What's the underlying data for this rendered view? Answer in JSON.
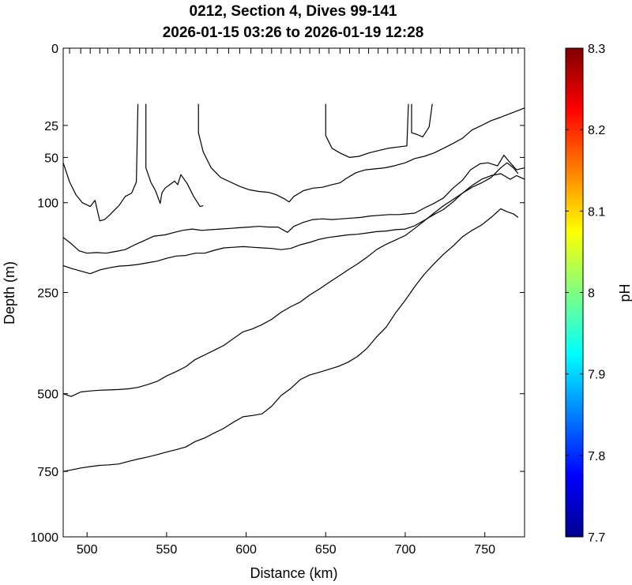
{
  "chart_data": {
    "type": "contour",
    "title_line1": "0212, Section 4, Dives 99-141",
    "title_line2": "2026-01-15 03:26 to 2026-01-19 12:28",
    "xlabel": "Distance (km)",
    "ylabel": "Depth (m)",
    "xlim": [
      485,
      775
    ],
    "ylim": [
      0,
      1000
    ],
    "y_scale": "sqrt",
    "x_ticks": [
      500,
      550,
      600,
      650,
      700,
      750
    ],
    "y_ticks": [
      0,
      25,
      50,
      100,
      250,
      500,
      750,
      1000
    ],
    "dive_marker_x": [
      485,
      489,
      496,
      502,
      508,
      513,
      520,
      527,
      533,
      537,
      541,
      548,
      556,
      562,
      568,
      575,
      582,
      589,
      596,
      603,
      610,
      616,
      622,
      628,
      634,
      640,
      646,
      652,
      659,
      665,
      671,
      677,
      683,
      689,
      695,
      700,
      705,
      710,
      716,
      722,
      728,
      734,
      740,
      746,
      752,
      757,
      762,
      767,
      771
    ],
    "colorbar": {
      "label": "pH",
      "min": 7.7,
      "max": 8.3,
      "ticks": [
        "8.3",
        "8.2",
        "8.1",
        "8",
        "7.9",
        "7.8",
        "7.7"
      ],
      "colormap": [
        "#00008f",
        "#0000ff",
        "#0080ff",
        "#00ffff",
        "#80ff80",
        "#ffff00",
        "#ff8000",
        "#ff0000",
        "#800000"
      ]
    },
    "contours": [
      [
        [
          485,
          55
        ],
        [
          489,
          75
        ],
        [
          493,
          90
        ],
        [
          497,
          100
        ],
        [
          502,
          105
        ],
        [
          505,
          97
        ],
        [
          508,
          125
        ],
        [
          511,
          123
        ],
        [
          514,
          117
        ],
        [
          518,
          108
        ],
        [
          520,
          104
        ],
        [
          524,
          92
        ],
        [
          528,
          88
        ],
        [
          531,
          75
        ],
        [
          532,
          13
        ]
      ],
      [
        [
          537,
          13
        ],
        [
          537,
          60
        ],
        [
          540,
          75
        ],
        [
          543,
          85
        ],
        [
          546,
          101
        ],
        [
          547,
          88
        ],
        [
          549,
          82
        ],
        [
          552,
          78
        ],
        [
          555,
          74
        ],
        [
          557,
          78
        ],
        [
          559,
          67
        ],
        [
          563,
          77
        ],
        [
          567,
          92
        ],
        [
          571,
          105
        ],
        [
          573,
          104
        ]
      ],
      [
        [
          570,
          13
        ],
        [
          570,
          30
        ],
        [
          573,
          45
        ],
        [
          578,
          60
        ],
        [
          584,
          70
        ],
        [
          590,
          75
        ],
        [
          596,
          80
        ],
        [
          602,
          84
        ],
        [
          608,
          86
        ],
        [
          614,
          87
        ],
        [
          619,
          90
        ],
        [
          624,
          95
        ],
        [
          627,
          99
        ],
        [
          630,
          92
        ],
        [
          636,
          85
        ],
        [
          642,
          82
        ],
        [
          648,
          81
        ],
        [
          654,
          78
        ],
        [
          659,
          76
        ],
        [
          663,
          71
        ],
        [
          669,
          65
        ],
        [
          675,
          62
        ],
        [
          681,
          61
        ],
        [
          687,
          60
        ],
        [
          693,
          58
        ],
        [
          700,
          55
        ],
        [
          706,
          51
        ],
        [
          712,
          49
        ],
        [
          718,
          46
        ],
        [
          724,
          42
        ],
        [
          730,
          38
        ],
        [
          736,
          34
        ],
        [
          742,
          28
        ],
        [
          748,
          25
        ],
        [
          754,
          22
        ],
        [
          760,
          20
        ],
        [
          775,
          15
        ]
      ],
      [
        [
          650,
          13
        ],
        [
          650,
          32
        ],
        [
          654,
          42
        ],
        [
          659,
          46
        ],
        [
          665,
          50
        ],
        [
          671,
          49
        ],
        [
          677,
          46
        ],
        [
          683,
          44
        ],
        [
          689,
          42
        ],
        [
          695,
          41
        ],
        [
          701,
          40
        ],
        [
          702,
          13
        ]
      ],
      [
        [
          704,
          13
        ],
        [
          704,
          30
        ],
        [
          707,
          31
        ],
        [
          711,
          33
        ],
        [
          715,
          26
        ],
        [
          717,
          13
        ]
      ],
      [
        [
          485,
          150
        ],
        [
          490,
          160
        ],
        [
          495,
          172
        ],
        [
          500,
          176
        ],
        [
          506,
          175
        ],
        [
          512,
          176
        ],
        [
          518,
          173
        ],
        [
          524,
          170
        ],
        [
          530,
          162
        ],
        [
          536,
          155
        ],
        [
          542,
          148
        ],
        [
          549,
          146
        ],
        [
          555,
          142
        ],
        [
          560,
          139
        ],
        [
          566,
          137
        ],
        [
          572,
          139
        ],
        [
          578,
          138
        ],
        [
          584,
          137
        ],
        [
          590,
          136
        ],
        [
          596,
          135
        ],
        [
          602,
          134
        ],
        [
          608,
          133
        ],
        [
          614,
          134
        ],
        [
          620,
          134
        ],
        [
          626,
          142
        ],
        [
          630,
          133
        ],
        [
          636,
          127
        ],
        [
          642,
          123
        ],
        [
          648,
          122
        ],
        [
          654,
          123
        ],
        [
          660,
          122
        ],
        [
          666,
          121
        ],
        [
          672,
          120
        ],
        [
          678,
          118
        ],
        [
          684,
          117
        ],
        [
          690,
          116
        ],
        [
          696,
          116
        ],
        [
          701,
          115
        ],
        [
          706,
          114
        ],
        [
          712,
          107
        ],
        [
          718,
          101
        ],
        [
          724,
          94
        ],
        [
          730,
          82
        ],
        [
          736,
          73
        ],
        [
          741,
          62
        ],
        [
          747,
          56
        ],
        [
          752,
          55
        ],
        [
          758,
          58
        ],
        [
          762,
          48
        ],
        [
          766,
          55
        ],
        [
          770,
          62
        ],
        [
          775,
          60
        ]
      ],
      [
        [
          485,
          198
        ],
        [
          490,
          203
        ],
        [
          496,
          208
        ],
        [
          502,
          213
        ],
        [
          508,
          206
        ],
        [
          514,
          202
        ],
        [
          520,
          199
        ],
        [
          526,
          198
        ],
        [
          532,
          196
        ],
        [
          538,
          193
        ],
        [
          544,
          190
        ],
        [
          550,
          185
        ],
        [
          556,
          181
        ],
        [
          562,
          180
        ],
        [
          568,
          176
        ],
        [
          574,
          176
        ],
        [
          580,
          171
        ],
        [
          586,
          167
        ],
        [
          592,
          166
        ],
        [
          598,
          165
        ],
        [
          604,
          166
        ],
        [
          610,
          167
        ],
        [
          616,
          168
        ],
        [
          622,
          170
        ],
        [
          628,
          168
        ],
        [
          634,
          162
        ],
        [
          640,
          158
        ],
        [
          646,
          153
        ],
        [
          652,
          150
        ],
        [
          658,
          148
        ],
        [
          664,
          146
        ],
        [
          670,
          145
        ],
        [
          676,
          143
        ],
        [
          682,
          141
        ],
        [
          688,
          140
        ],
        [
          694,
          138
        ],
        [
          700,
          137
        ],
        [
          706,
          132
        ],
        [
          712,
          124
        ],
        [
          718,
          116
        ],
        [
          724,
          109
        ],
        [
          730,
          99
        ],
        [
          736,
          88
        ],
        [
          742,
          79
        ],
        [
          748,
          72
        ],
        [
          754,
          68
        ],
        [
          760,
          66
        ],
        [
          766,
          72
        ],
        [
          770,
          68
        ],
        [
          775,
          72
        ]
      ],
      [
        [
          485,
          500
        ],
        [
          490,
          508
        ],
        [
          496,
          495
        ],
        [
          502,
          492
        ],
        [
          508,
          490
        ],
        [
          514,
          489
        ],
        [
          520,
          488
        ],
        [
          526,
          486
        ],
        [
          532,
          482
        ],
        [
          538,
          474
        ],
        [
          544,
          465
        ],
        [
          550,
          450
        ],
        [
          556,
          438
        ],
        [
          562,
          425
        ],
        [
          568,
          406
        ],
        [
          574,
          394
        ],
        [
          580,
          382
        ],
        [
          586,
          370
        ],
        [
          592,
          353
        ],
        [
          598,
          337
        ],
        [
          604,
          330
        ],
        [
          610,
          320
        ],
        [
          616,
          308
        ],
        [
          622,
          292
        ],
        [
          628,
          280
        ],
        [
          634,
          270
        ],
        [
          640,
          255
        ],
        [
          646,
          243
        ],
        [
          652,
          230
        ],
        [
          658,
          218
        ],
        [
          664,
          206
        ],
        [
          670,
          195
        ],
        [
          676,
          183
        ],
        [
          682,
          170
        ],
        [
          688,
          161
        ],
        [
          694,
          154
        ],
        [
          700,
          147
        ],
        [
          706,
          136
        ],
        [
          712,
          125
        ],
        [
          718,
          114
        ],
        [
          724,
          104
        ],
        [
          730,
          96
        ],
        [
          736,
          88
        ],
        [
          742,
          81
        ],
        [
          748,
          76
        ],
        [
          754,
          70
        ],
        [
          760,
          60
        ],
        [
          764,
          55
        ],
        [
          768,
          60
        ],
        [
          771,
          66
        ]
      ],
      [
        [
          485,
          750
        ],
        [
          490,
          745
        ],
        [
          496,
          738
        ],
        [
          502,
          733
        ],
        [
          508,
          729
        ],
        [
          514,
          727
        ],
        [
          520,
          724
        ],
        [
          526,
          715
        ],
        [
          532,
          707
        ],
        [
          538,
          700
        ],
        [
          544,
          692
        ],
        [
          550,
          683
        ],
        [
          556,
          675
        ],
        [
          562,
          666
        ],
        [
          568,
          648
        ],
        [
          574,
          636
        ],
        [
          580,
          620
        ],
        [
          586,
          605
        ],
        [
          592,
          586
        ],
        [
          598,
          569
        ],
        [
          604,
          565
        ],
        [
          610,
          560
        ],
        [
          616,
          537
        ],
        [
          622,
          505
        ],
        [
          628,
          485
        ],
        [
          634,
          460
        ],
        [
          640,
          447
        ],
        [
          646,
          440
        ],
        [
          652,
          432
        ],
        [
          658,
          424
        ],
        [
          664,
          413
        ],
        [
          670,
          398
        ],
        [
          676,
          377
        ],
        [
          682,
          349
        ],
        [
          688,
          326
        ],
        [
          694,
          293
        ],
        [
          700,
          266
        ],
        [
          706,
          238
        ],
        [
          712,
          214
        ],
        [
          718,
          195
        ],
        [
          724,
          178
        ],
        [
          730,
          164
        ],
        [
          736,
          149
        ],
        [
          742,
          139
        ],
        [
          748,
          131
        ],
        [
          754,
          120
        ],
        [
          760,
          108
        ],
        [
          764,
          112
        ],
        [
          768,
          115
        ],
        [
          771,
          120
        ]
      ]
    ]
  }
}
